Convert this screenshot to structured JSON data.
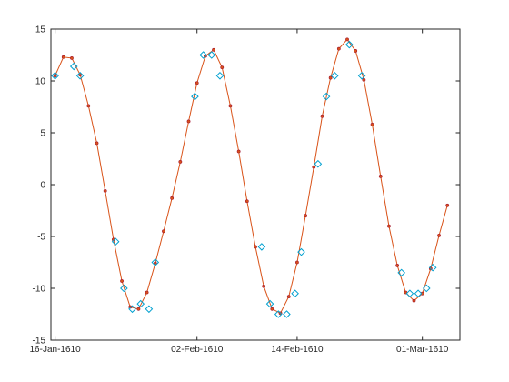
{
  "chart_data": {
    "type": "line",
    "title": "",
    "xlabel": "",
    "ylabel": "",
    "x_axis_kind": "date",
    "xlim": [
      "1610-01-15T12:00",
      "1610-03-05T12:00"
    ],
    "ylim": [
      -15,
      15
    ],
    "x_ticks": [
      {
        "date": "1610-01-16",
        "label": "16-Jan-1610"
      },
      {
        "date": "1610-02-02",
        "label": "02-Feb-1610"
      },
      {
        "date": "1610-02-14",
        "label": "14-Feb-1610"
      },
      {
        "date": "1610-03-01",
        "label": "01-Mar-1610"
      }
    ],
    "y_ticks": [
      -15,
      -10,
      -5,
      0,
      5,
      10,
      15
    ],
    "grid": false,
    "box": true,
    "series": [
      {
        "style": "line-with-dot-markers",
        "color": "#d95319",
        "marker_edge": "#a2142f",
        "points": [
          {
            "x": "1610-01-16T00:00",
            "y": 10.5
          },
          {
            "x": "1610-01-17T00:00",
            "y": 12.3
          },
          {
            "x": "1610-01-18T00:00",
            "y": 12.2
          },
          {
            "x": "1610-01-19T00:00",
            "y": 10.6
          },
          {
            "x": "1610-01-20T00:00",
            "y": 7.6
          },
          {
            "x": "1610-01-21T00:00",
            "y": 4.0
          },
          {
            "x": "1610-01-22T00:00",
            "y": -0.6
          },
          {
            "x": "1610-01-23T00:00",
            "y": -5.3
          },
          {
            "x": "1610-01-24T00:00",
            "y": -9.3
          },
          {
            "x": "1610-01-25T00:00",
            "y": -11.8
          },
          {
            "x": "1610-01-26T00:00",
            "y": -12.0
          },
          {
            "x": "1610-01-27T00:00",
            "y": -10.4
          },
          {
            "x": "1610-01-28T00:00",
            "y": -7.6
          },
          {
            "x": "1610-01-29T00:00",
            "y": -4.5
          },
          {
            "x": "1610-01-30T00:00",
            "y": -1.3
          },
          {
            "x": "1610-01-31T00:00",
            "y": 2.2
          },
          {
            "x": "1610-02-01T00:00",
            "y": 6.1
          },
          {
            "x": "1610-02-02T00:00",
            "y": 9.8
          },
          {
            "x": "1610-02-03T00:00",
            "y": 12.4
          },
          {
            "x": "1610-02-04T00:00",
            "y": 13.0
          },
          {
            "x": "1610-02-05T00:00",
            "y": 11.3
          },
          {
            "x": "1610-02-06T00:00",
            "y": 7.6
          },
          {
            "x": "1610-02-07T00:00",
            "y": 3.2
          },
          {
            "x": "1610-02-08T00:00",
            "y": -1.6
          },
          {
            "x": "1610-02-09T00:00",
            "y": -6.0
          },
          {
            "x": "1610-02-10T00:00",
            "y": -9.8
          },
          {
            "x": "1610-02-11T00:00",
            "y": -12.0
          },
          {
            "x": "1610-02-12T00:00",
            "y": -12.4
          },
          {
            "x": "1610-02-13T00:00",
            "y": -10.8
          },
          {
            "x": "1610-02-14T00:00",
            "y": -7.5
          },
          {
            "x": "1610-02-15T00:00",
            "y": -3.0
          },
          {
            "x": "1610-02-16T00:00",
            "y": 1.7
          },
          {
            "x": "1610-02-17T00:00",
            "y": 6.6
          },
          {
            "x": "1610-02-18T00:00",
            "y": 10.3
          },
          {
            "x": "1610-02-19T00:00",
            "y": 13.1
          },
          {
            "x": "1610-02-20T00:00",
            "y": 14.0
          },
          {
            "x": "1610-02-21T00:00",
            "y": 12.9
          },
          {
            "x": "1610-02-22T00:00",
            "y": 10.1
          },
          {
            "x": "1610-02-23T00:00",
            "y": 5.8
          },
          {
            "x": "1610-02-24T00:00",
            "y": 0.8
          },
          {
            "x": "1610-02-25T00:00",
            "y": -4.0
          },
          {
            "x": "1610-02-26T00:00",
            "y": -7.8
          },
          {
            "x": "1610-02-27T00:00",
            "y": -10.4
          },
          {
            "x": "1610-02-28T00:00",
            "y": -11.2
          },
          {
            "x": "1610-03-01T00:00",
            "y": -10.5
          },
          {
            "x": "1610-03-02T00:00",
            "y": -8.1
          },
          {
            "x": "1610-03-03T00:00",
            "y": -4.9
          },
          {
            "x": "1610-03-04T00:00",
            "y": -2.0
          }
        ]
      },
      {
        "style": "diamond-markers",
        "color": "#00a0d0",
        "points": [
          {
            "x": "1610-01-16T00:00",
            "y": 10.5
          },
          {
            "x": "1610-01-18T06:00",
            "y": 11.4
          },
          {
            "x": "1610-01-19T00:00",
            "y": 10.5
          },
          {
            "x": "1610-01-23T06:00",
            "y": -5.5
          },
          {
            "x": "1610-01-24T06:00",
            "y": -10.0
          },
          {
            "x": "1610-01-25T06:00",
            "y": -12.0
          },
          {
            "x": "1610-01-26T06:00",
            "y": -11.5
          },
          {
            "x": "1610-01-27T06:00",
            "y": -12.0
          },
          {
            "x": "1610-01-28T00:00",
            "y": -7.5
          },
          {
            "x": "1610-02-01T18:00",
            "y": 8.5
          },
          {
            "x": "1610-02-02T18:00",
            "y": 12.5
          },
          {
            "x": "1610-02-03T18:00",
            "y": 12.5
          },
          {
            "x": "1610-02-04T18:00",
            "y": 10.5
          },
          {
            "x": "1610-02-09T18:00",
            "y": -6.0
          },
          {
            "x": "1610-02-10T18:00",
            "y": -11.5
          },
          {
            "x": "1610-02-11T18:00",
            "y": -12.5
          },
          {
            "x": "1610-02-12T18:00",
            "y": -12.5
          },
          {
            "x": "1610-02-13T18:00",
            "y": -10.5
          },
          {
            "x": "1610-02-14T12:00",
            "y": -6.5
          },
          {
            "x": "1610-02-16T12:00",
            "y": 2.0
          },
          {
            "x": "1610-02-17T12:00",
            "y": 8.5
          },
          {
            "x": "1610-02-18T12:00",
            "y": 10.5
          },
          {
            "x": "1610-02-20T06:00",
            "y": 13.5
          },
          {
            "x": "1610-02-21T18:00",
            "y": 10.5
          },
          {
            "x": "1610-02-26T12:00",
            "y": -8.5
          },
          {
            "x": "1610-02-27T12:00",
            "y": -10.5
          },
          {
            "x": "1610-02-28T12:00",
            "y": -10.5
          },
          {
            "x": "1610-03-01T12:00",
            "y": -10.0
          },
          {
            "x": "1610-03-02T06:00",
            "y": -8.0
          }
        ]
      }
    ]
  }
}
